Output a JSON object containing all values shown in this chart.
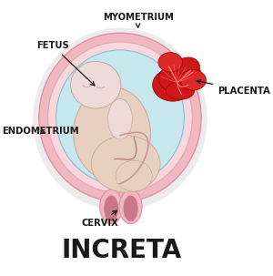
{
  "title": "INCRETA",
  "labels": {
    "myometrium": "MYOMETRIUM",
    "fetus": "FETUS",
    "placenta": "PLACENTA",
    "endometrium": "ENDOMETRIUM",
    "cervix": "CERVIX"
  },
  "colors": {
    "outer_uterus": "#f2b8c2",
    "outer_uterus_edge": "#e090a0",
    "inner_pink": "#f8d8dc",
    "inner_pink_edge": "#e0a8b0",
    "amniotic": "#c8e8f0",
    "amniotic_edge": "#88bcd0",
    "fetus_skin": "#eedad8",
    "fetus_skin2": "#e8d0c0",
    "fetus_edge": "#c8a898",
    "placenta_red": "#cc1818",
    "placenta_mid": "#dd2828",
    "placenta_light": "#e84040",
    "cervix_outer": "#f2b8c2",
    "cervix_inner": "#c87888",
    "cord": "#c89898",
    "cord_dark": "#b07878",
    "background": "#ffffff",
    "text": "#1a1a1a",
    "arrow": "#1a1a1a",
    "shadow_gray": "#d8d8d8"
  },
  "figsize": [
    3.0,
    3.03
  ],
  "dpi": 100,
  "title_fontsize": 20,
  "label_fontsize": 7.2
}
